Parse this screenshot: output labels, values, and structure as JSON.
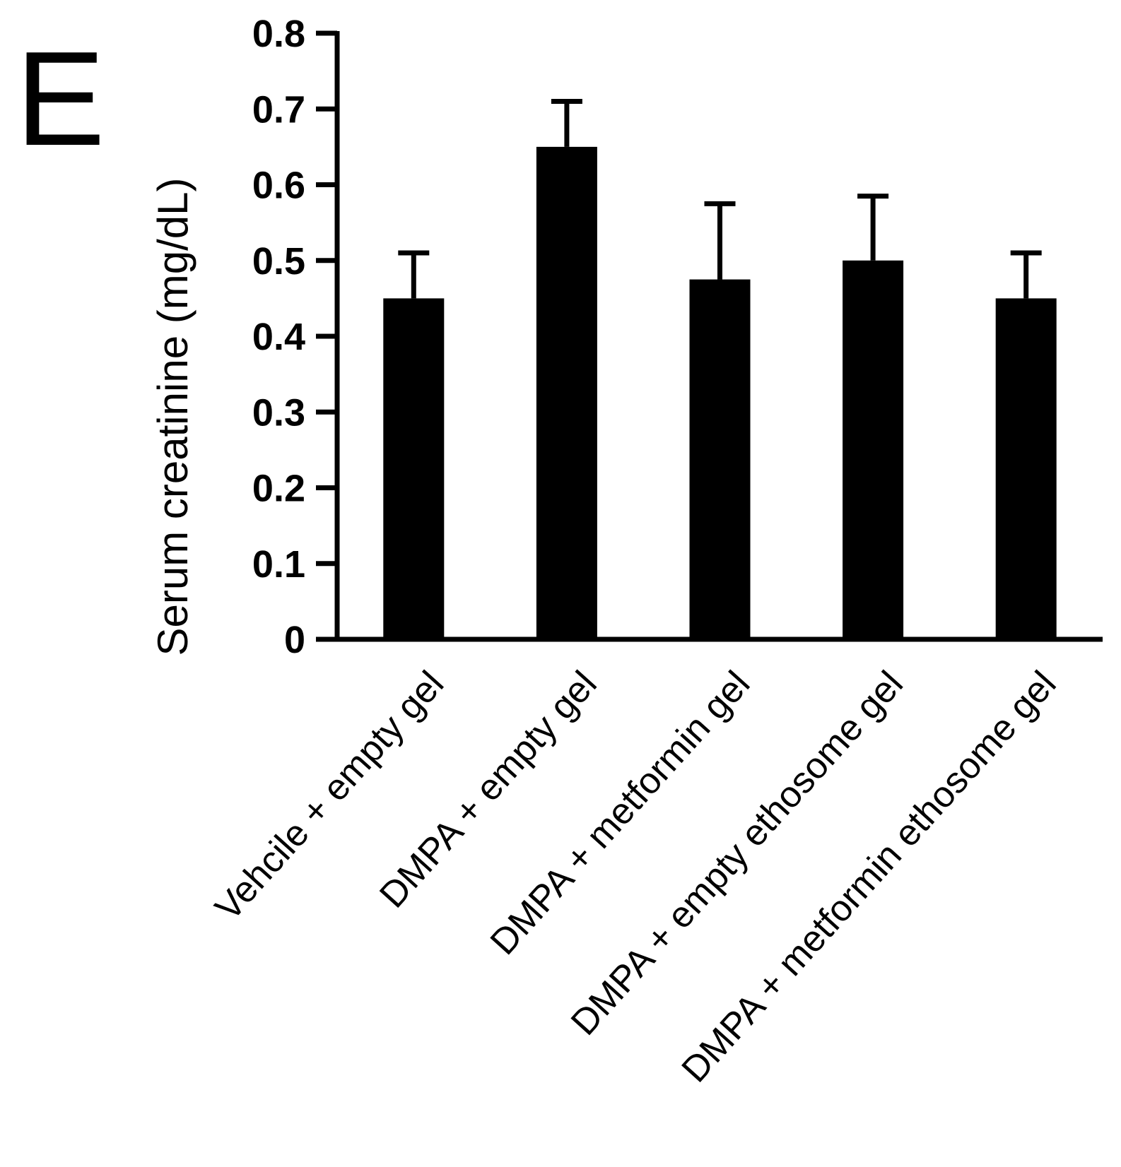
{
  "panel_label": "E",
  "chart_data": {
    "type": "bar",
    "ylabel": "Serum creatinine (mg/dL)",
    "xlabel": "",
    "ylim": [
      0,
      0.8
    ],
    "yticks": [
      0,
      0.1,
      0.2,
      0.3,
      0.4,
      0.5,
      0.6,
      0.7,
      0.8
    ],
    "ytick_labels": [
      "0",
      "0.1",
      "0.2",
      "0.3",
      "0.4",
      "0.5",
      "0.6",
      "0.7",
      "0.8"
    ],
    "categories": [
      "Vehcile + empty gel",
      "DMPA + empty gel",
      "DMPA + metformin gel",
      "DMPA + empty ethosome gel",
      "DMPA + metformin ethosome gel"
    ],
    "values": [
      0.45,
      0.65,
      0.475,
      0.5,
      0.45
    ],
    "error_upper": [
      0.06,
      0.06,
      0.1,
      0.085,
      0.06
    ],
    "bar_color": "#000000",
    "grid": false,
    "legend": "none"
  }
}
